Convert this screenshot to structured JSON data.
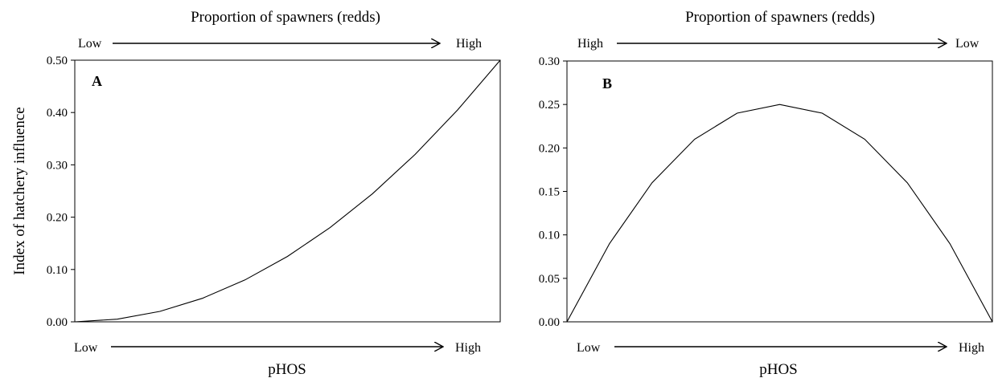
{
  "chart_data": [
    {
      "type": "line",
      "panel_label": "A",
      "top_axis_title": "Proportion of spawners (redds)",
      "top_arrow": {
        "start": "Low",
        "end": "High"
      },
      "xlabel": "pHOS",
      "bottom_arrow": {
        "start": "Low",
        "end": "High"
      },
      "ylabel": "Index of hatchery influence",
      "ylim": [
        0,
        0.5
      ],
      "yticks": [
        "0.00",
        "0.10",
        "0.20",
        "0.30",
        "0.40",
        "0.50"
      ],
      "xlim": [
        0,
        1
      ],
      "x": [
        0,
        0.1,
        0.2,
        0.3,
        0.4,
        0.5,
        0.6,
        0.7,
        0.8,
        0.9,
        1.0
      ],
      "y": [
        0,
        0.005,
        0.02,
        0.045,
        0.08,
        0.125,
        0.18,
        0.245,
        0.32,
        0.405,
        0.5
      ]
    },
    {
      "type": "line",
      "panel_label": "B",
      "top_axis_title": "Proportion of spawners (redds)",
      "top_arrow": {
        "start": "High",
        "end": "Low"
      },
      "xlabel": "pHOS",
      "bottom_arrow": {
        "start": "Low",
        "end": "High"
      },
      "ylabel": "",
      "ylim": [
        0,
        0.3
      ],
      "yticks": [
        "0.00",
        "0.05",
        "0.10",
        "0.15",
        "0.20",
        "0.25",
        "0.30"
      ],
      "xlim": [
        0,
        1
      ],
      "x": [
        0,
        0.1,
        0.2,
        0.3,
        0.4,
        0.5,
        0.6,
        0.7,
        0.8,
        0.9,
        1.0
      ],
      "y": [
        0,
        0.09,
        0.16,
        0.21,
        0.24,
        0.25,
        0.24,
        0.21,
        0.16,
        0.09,
        0
      ]
    }
  ]
}
